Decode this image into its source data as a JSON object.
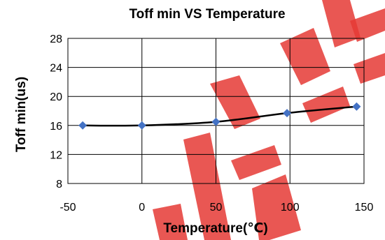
{
  "chart_data": {
    "type": "line",
    "title": "Toff min VS Temperature",
    "xlabel": "Temperature(℃)",
    "ylabel": "Toff min(us)",
    "xlim": [
      -50,
      150
    ],
    "ylim": [
      8,
      28
    ],
    "x_ticks": [
      -50,
      0,
      50,
      100,
      150
    ],
    "y_ticks": [
      8,
      12,
      16,
      20,
      24,
      28
    ],
    "grid": true,
    "series": [
      {
        "x": [
          -40,
          0,
          50,
          98,
          145
        ],
        "values": [
          16.0,
          16.0,
          16.5,
          17.7,
          18.6
        ],
        "color": "#4472C4",
        "line_color": "#000000",
        "marker": "diamond"
      }
    ]
  },
  "watermark": {
    "color": "#E53935"
  }
}
